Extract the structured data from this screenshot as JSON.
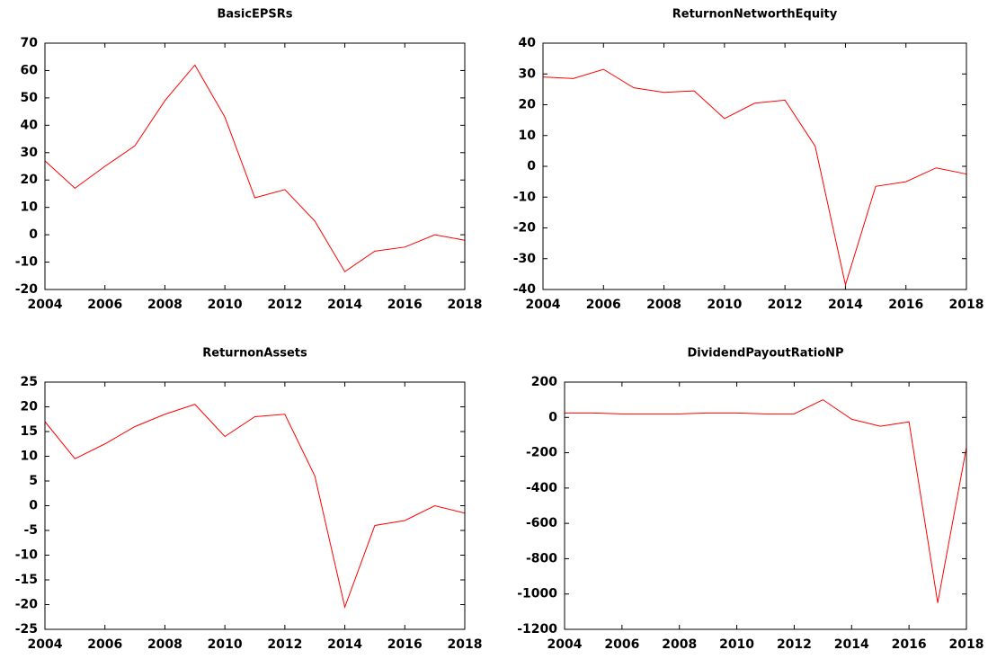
{
  "chart_data": [
    {
      "type": "line",
      "title": "BasicEPSRs",
      "x": [
        2004,
        2005,
        2006,
        2007,
        2008,
        2009,
        2010,
        2011,
        2012,
        2013,
        2014,
        2015,
        2016,
        2017,
        2018
      ],
      "values": [
        27,
        17,
        25,
        32.5,
        49,
        62,
        43,
        13.5,
        16.5,
        5,
        -13.5,
        -6,
        -4.5,
        0,
        -2
      ],
      "color": "#ff0000",
      "xlim": [
        2004,
        2018
      ],
      "xticks": [
        2004,
        2006,
        2008,
        2010,
        2012,
        2014,
        2016,
        2018
      ],
      "ylim": [
        -20,
        70
      ],
      "yticks": [
        -20,
        -10,
        0,
        10,
        20,
        30,
        40,
        50,
        60,
        70
      ]
    },
    {
      "type": "line",
      "title": "ReturnonNetworthEquity",
      "x": [
        2004,
        2005,
        2006,
        2007,
        2008,
        2009,
        2010,
        2011,
        2012,
        2013,
        2014,
        2015,
        2016,
        2017,
        2018
      ],
      "values": [
        29,
        28.5,
        31.5,
        25.5,
        24,
        24.5,
        15.5,
        20.5,
        21.5,
        6.5,
        -38.5,
        -6.5,
        -5,
        -0.5,
        -2.5
      ],
      "color": "#ff0000",
      "xlim": [
        2004,
        2018
      ],
      "xticks": [
        2004,
        2006,
        2008,
        2010,
        2012,
        2014,
        2016,
        2018
      ],
      "ylim": [
        -40,
        40
      ],
      "yticks": [
        -40,
        -30,
        -20,
        -10,
        0,
        10,
        20,
        30,
        40
      ]
    },
    {
      "type": "line",
      "title": "ReturnonAssets",
      "x": [
        2004,
        2005,
        2006,
        2007,
        2008,
        2009,
        2010,
        2011,
        2012,
        2013,
        2014,
        2015,
        2016,
        2017,
        2018
      ],
      "values": [
        17,
        9.5,
        12.5,
        16,
        18.5,
        20.5,
        14,
        18,
        18.5,
        6,
        -20.5,
        -4,
        -3,
        0,
        -1.5
      ],
      "color": "#ff0000",
      "xlim": [
        2004,
        2018
      ],
      "xticks": [
        2004,
        2006,
        2008,
        2010,
        2012,
        2014,
        2016,
        2018
      ],
      "ylim": [
        -25,
        25
      ],
      "yticks": [
        -25,
        -20,
        -15,
        -10,
        -5,
        0,
        5,
        10,
        15,
        20,
        25
      ]
    },
    {
      "type": "line",
      "title": "DividendPayoutRatioNP",
      "x": [
        2004,
        2005,
        2006,
        2007,
        2008,
        2009,
        2010,
        2011,
        2012,
        2013,
        2014,
        2015,
        2016,
        2017,
        2018
      ],
      "values": [
        25,
        25,
        20,
        20,
        20,
        25,
        25,
        20,
        20,
        100,
        -10,
        -50,
        -25,
        -1050,
        -170
      ],
      "color": "#ff0000",
      "xlim": [
        2004,
        2018
      ],
      "xticks": [
        2004,
        2006,
        2008,
        2010,
        2012,
        2014,
        2016,
        2018
      ],
      "ylim": [
        -1200,
        200
      ],
      "yticks": [
        -1200,
        -1000,
        -800,
        -600,
        -400,
        -200,
        0,
        200
      ]
    }
  ]
}
